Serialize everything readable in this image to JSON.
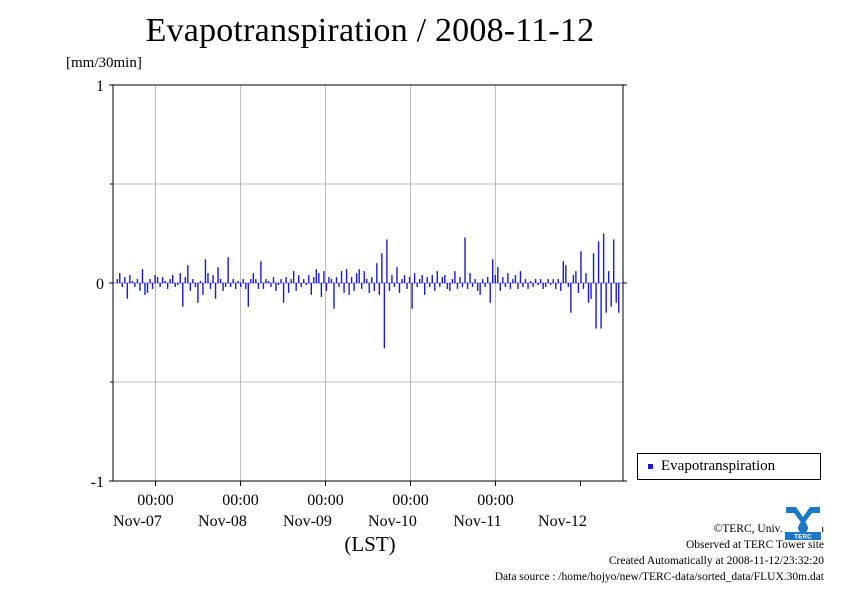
{
  "page": {
    "title": "Evapotranspiration / 2008-11-12",
    "unit_label": "[mm/30min]",
    "x_axis_label": "(LST)",
    "legend_label": "Evapotranspiration",
    "footer": {
      "copyright": "©TERC, Univ. Tsukuba",
      "observed": "Observed at TERC Tower site",
      "created": "Created Automatically at 2008-11-12/23:32:20",
      "source": "Data source : /home/hojyo/new/TERC-data/sorted_data/FLUX.30m.dat"
    },
    "logo_text": "TERC"
  },
  "colors": {
    "series": "#1a1acc",
    "grid": "#aaaaaa",
    "axis": "#000000"
  },
  "chart_data": {
    "type": "bar",
    "title": "Evapotranspiration / 2008-11-12",
    "ylabel": "[mm/30min]",
    "xlabel": "(LST)",
    "ylim": [
      -1,
      1
    ],
    "yticks": [
      -1,
      0,
      1
    ],
    "xlim_days": [
      "Nov-06 12:00",
      "Nov-12 12:00"
    ],
    "xtick_time_label": "00:00",
    "xtick_day_labels": [
      "Nov-07",
      "Nov-08",
      "Nov-09",
      "Nov-10",
      "Nov-11",
      "Nov-12"
    ],
    "grid": true,
    "legend_position": "right",
    "series": [
      {
        "name": "Evapotranspiration",
        "values": [
          0.02,
          0.05,
          -0.02,
          0.03,
          -0.08,
          0.04,
          0.01,
          -0.02,
          0.02,
          -0.04,
          0.07,
          -0.06,
          -0.05,
          0.02,
          -0.03,
          0.04,
          0.03,
          -0.02,
          0.03,
          0.01,
          -0.03,
          0.02,
          0.04,
          -0.02,
          -0.01,
          0.05,
          -0.12,
          0.03,
          0.09,
          -0.04,
          0.02,
          -0.02,
          -0.1,
          0.01,
          -0.06,
          0.12,
          0.05,
          -0.03,
          0.04,
          -0.08,
          0.08,
          0.02,
          -0.04,
          -0.02,
          0.13,
          -0.02,
          0.02,
          -0.03,
          0.01,
          -0.02,
          0.02,
          -0.03,
          -0.12,
          0.02,
          0.05,
          0.02,
          -0.03,
          0.11,
          -0.03,
          0.02,
          0.01,
          -0.02,
          0.03,
          -0.04,
          -0.01,
          0.02,
          -0.1,
          0.03,
          -0.05,
          0.02,
          0.06,
          -0.04,
          0.04,
          -0.02,
          0.02,
          -0.01,
          0.04,
          -0.06,
          0.03,
          0.07,
          0.05,
          -0.07,
          0.06,
          -0.04,
          0.03,
          0.02,
          -0.13,
          0.03,
          -0.02,
          0.06,
          -0.05,
          0.07,
          -0.06,
          0.03,
          -0.04,
          0.05,
          0.07,
          -0.03,
          0.06,
          0.02,
          -0.05,
          0.03,
          -0.04,
          0.1,
          -0.06,
          0.15,
          -0.33,
          0.22,
          -0.04,
          0.04,
          -0.02,
          0.08,
          -0.05,
          0.02,
          0.04,
          -0.03,
          0.03,
          -0.13,
          0.05,
          -0.02,
          0.02,
          0.04,
          -0.06,
          0.03,
          -0.02,
          0.04,
          -0.04,
          0.06,
          -0.02,
          0.03,
          0.04,
          -0.03,
          -0.04,
          0.02,
          0.06,
          -0.03,
          0.03,
          -0.02,
          0.23,
          -0.03,
          0.05,
          -0.02,
          0.02,
          -0.04,
          -0.06,
          0.02,
          -0.02,
          0.03,
          -0.1,
          0.12,
          0.04,
          0.08,
          -0.04,
          0.03,
          -0.02,
          0.05,
          -0.03,
          0.02,
          0.04,
          -0.03,
          0.06,
          -0.02,
          0.02,
          -0.03,
          0.01,
          -0.02,
          0.02,
          -0.01,
          0.02,
          -0.03,
          -0.02,
          0.02,
          -0.01,
          0.02,
          -0.03,
          0.02,
          -0.04,
          0.11,
          0.09,
          -0.02,
          -0.15,
          0.04,
          0.06,
          -0.05,
          0.16,
          -0.03,
          0.05,
          -0.1,
          -0.08,
          0.15,
          -0.23,
          0.21,
          -0.23,
          0.25,
          -0.15,
          0.06,
          -0.12,
          0.22,
          -0.1,
          -0.15
        ]
      }
    ]
  }
}
